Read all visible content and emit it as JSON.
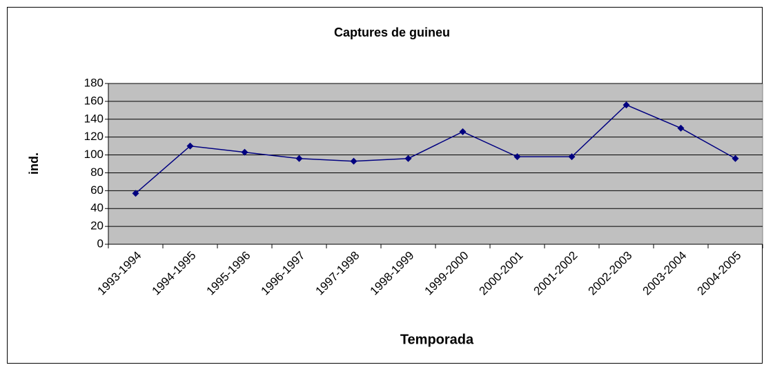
{
  "chart_data": {
    "type": "line",
    "title": "Captures de guineu",
    "x_label": "Temporada",
    "y_label": "ind.",
    "categories": [
      "1993-1994",
      "1994-1995",
      "1995-1996",
      "1996-1997",
      "1997-1998",
      "1998-1999",
      "1999-2000",
      "2000-2001",
      "2001-2002",
      "2002-2003",
      "2003-2004",
      "2004-2005"
    ],
    "values": [
      57,
      110,
      103,
      96,
      93,
      96,
      126,
      98,
      98,
      156,
      130,
      96
    ],
    "color": "#000080",
    "ylim": [
      0,
      180
    ],
    "yticks": [
      0,
      20,
      40,
      60,
      80,
      100,
      120,
      140,
      160,
      180
    ],
    "grid": true
  }
}
